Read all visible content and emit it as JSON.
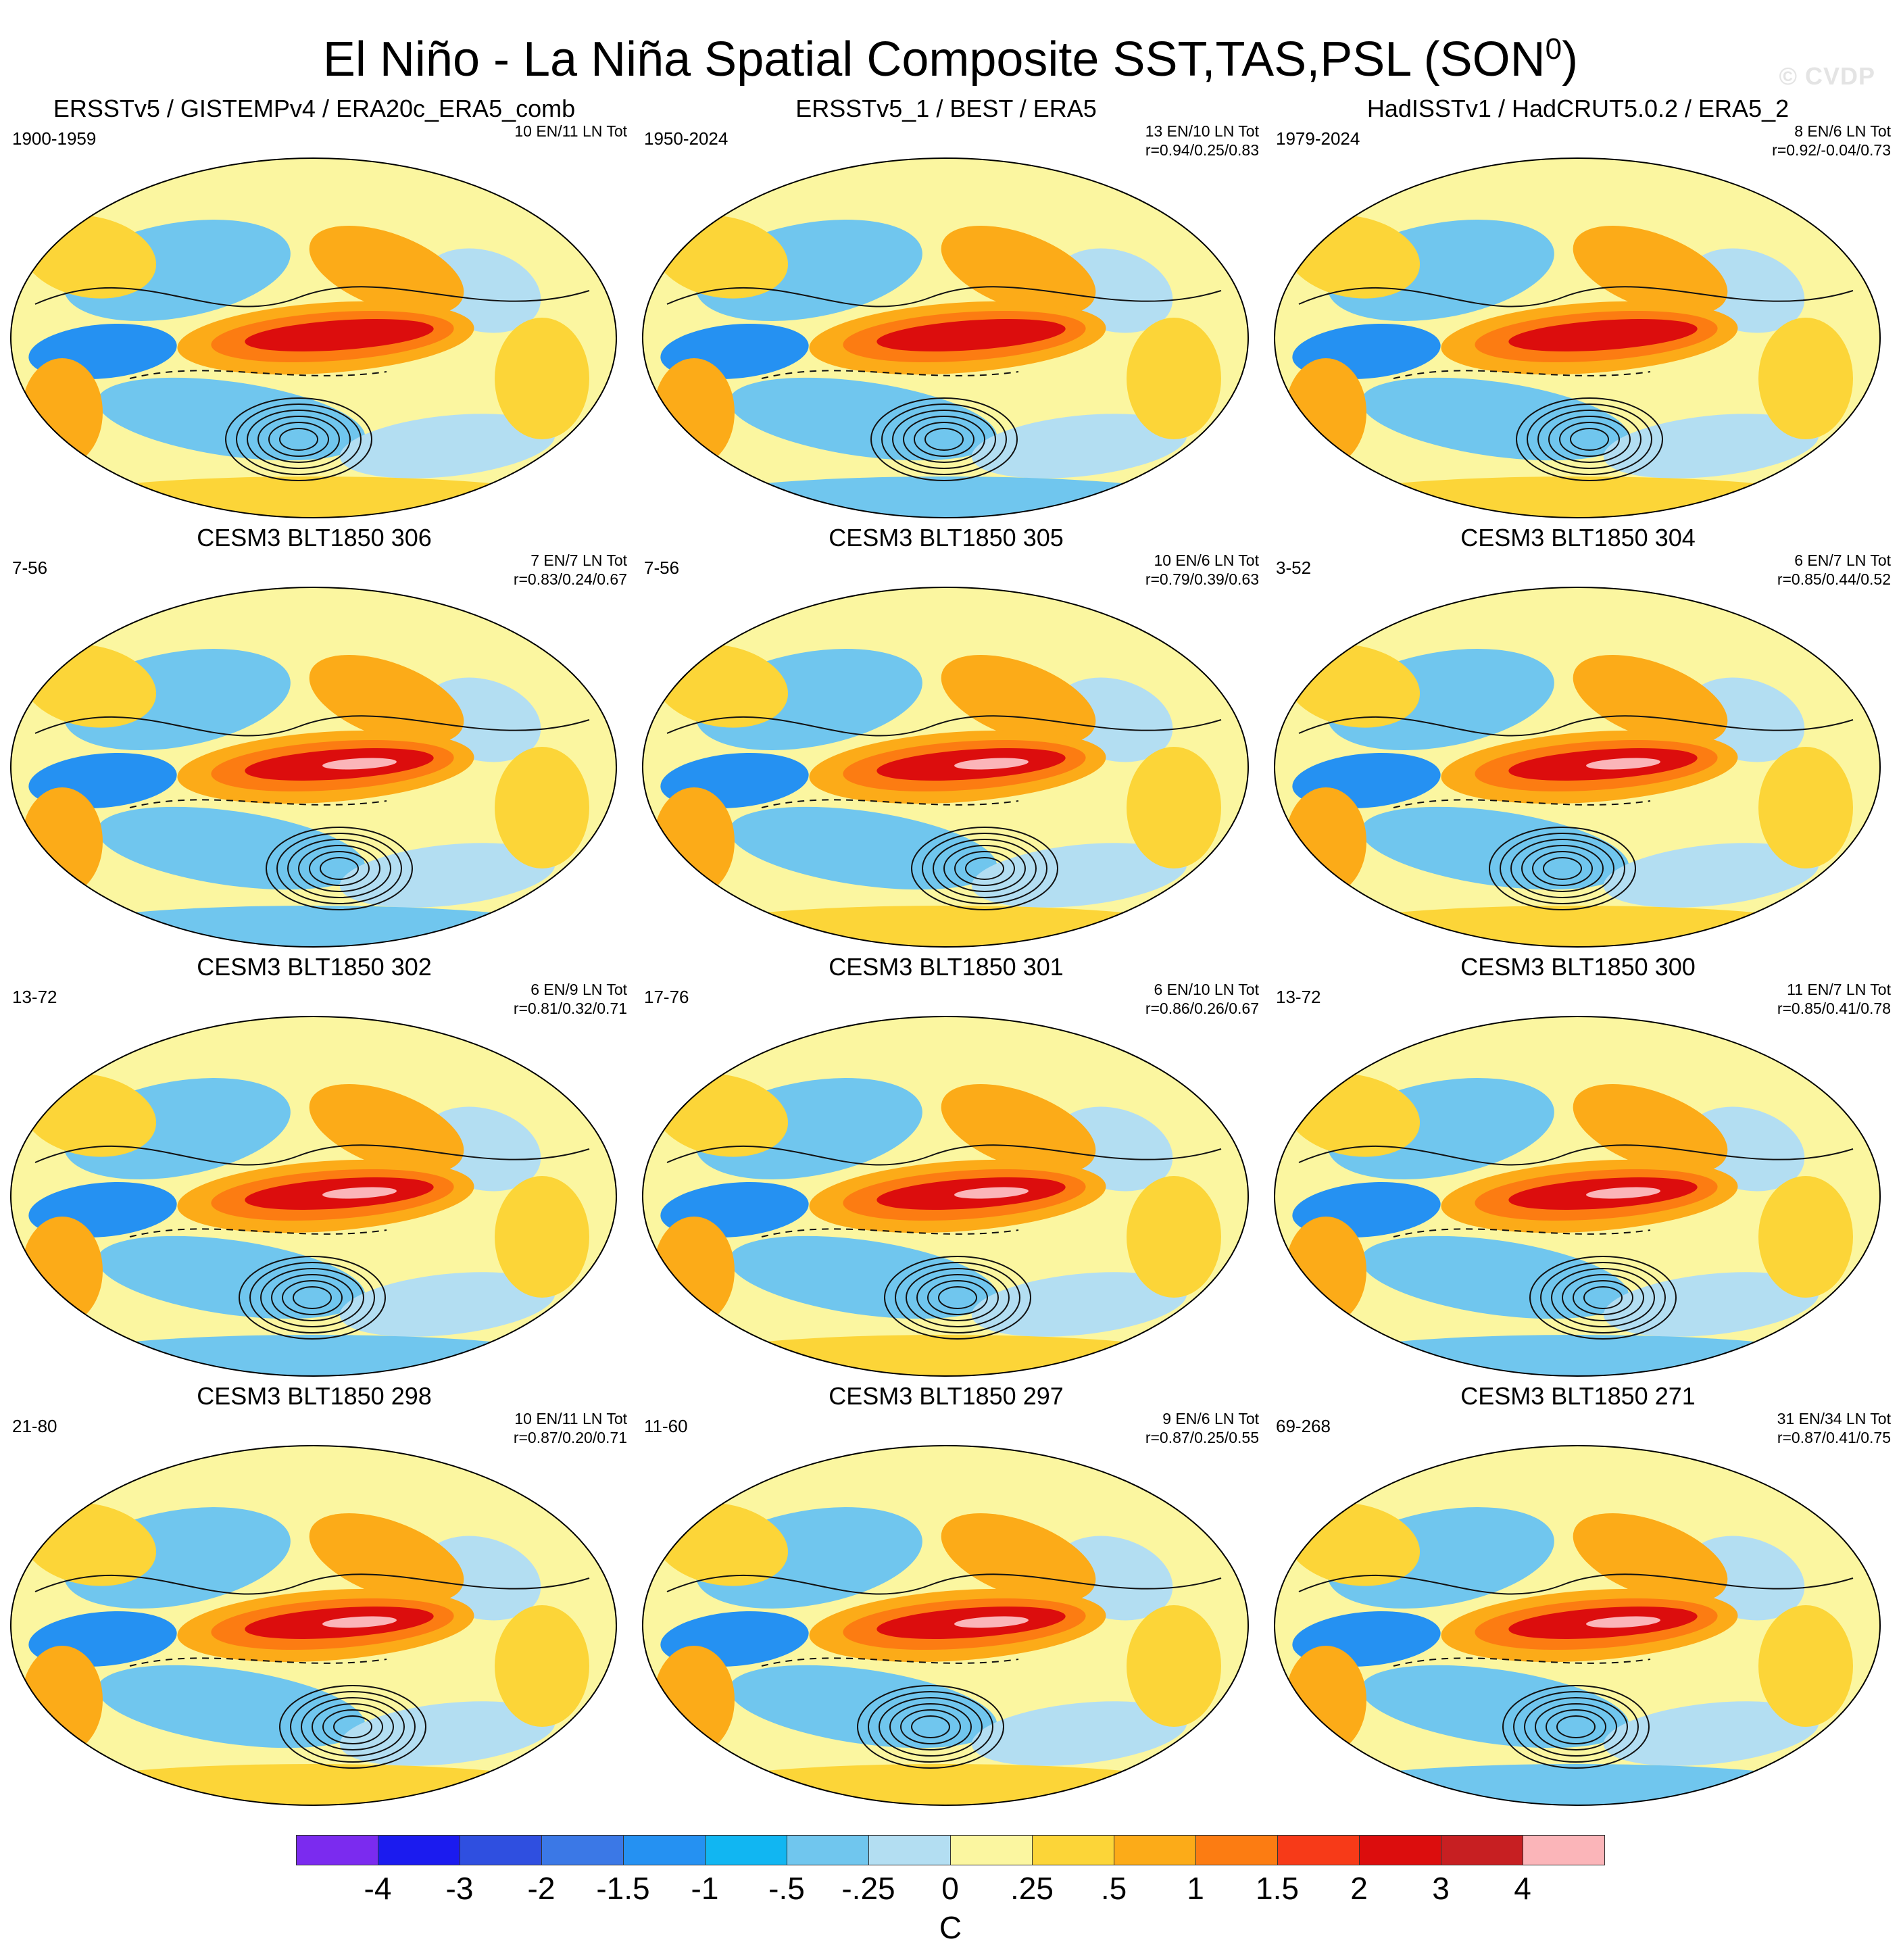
{
  "figure": {
    "title": "El Niño - La Niña Spatial Composite SST,TAS,PSL (SON",
    "title_superscript": "0",
    "title_suffix": ")",
    "watermark": "© CVDP"
  },
  "panels": [
    {
      "title": "ERSSTv5 / GISTEMPv4 / ERA20c_ERA5_comb",
      "years": "1900-1959",
      "stats": "10 EN/11 LN Tot"
    },
    {
      "title": "ERSSTv5_1 / BEST / ERA5",
      "years": "1950-2024",
      "stats": "13 EN/10 LN Tot\nr=0.94/0.25/0.83"
    },
    {
      "title": "HadISSTv1 / HadCRUT5.0.2 / ERA5_2",
      "years": "1979-2024",
      "stats": "8 EN/6 LN Tot\nr=0.92/-0.04/0.73"
    },
    {
      "title": "CESM3 BLT1850 306",
      "years": "7-56",
      "stats": "7 EN/7 LN Tot\nr=0.83/0.24/0.67"
    },
    {
      "title": "CESM3 BLT1850 305",
      "years": "7-56",
      "stats": "10 EN/6 LN Tot\nr=0.79/0.39/0.63"
    },
    {
      "title": "CESM3 BLT1850 304",
      "years": "3-52",
      "stats": "6 EN/7 LN Tot\nr=0.85/0.44/0.52"
    },
    {
      "title": "CESM3 BLT1850 302",
      "years": "13-72",
      "stats": "6 EN/9 LN Tot\nr=0.81/0.32/0.71"
    },
    {
      "title": "CESM3 BLT1850 301",
      "years": "17-76",
      "stats": "6 EN/10 LN Tot\nr=0.86/0.26/0.67"
    },
    {
      "title": "CESM3 BLT1850 300",
      "years": "13-72",
      "stats": "11 EN/7 LN Tot\nr=0.85/0.41/0.78"
    },
    {
      "title": "CESM3 BLT1850 298",
      "years": "21-80",
      "stats": "10 EN/11 LN Tot\nr=0.87/0.20/0.71"
    },
    {
      "title": "CESM3 BLT1850 297",
      "years": "11-60",
      "stats": "9 EN/6 LN Tot\nr=0.87/0.25/0.55"
    },
    {
      "title": "CESM3 BLT1850 271",
      "years": "69-268",
      "stats": "31 EN/34 LN Tot\nr=0.87/0.41/0.75"
    }
  ],
  "colorbar": {
    "colors": [
      "#7b2bef",
      "#1b1bef",
      "#2f4fe0",
      "#3b78e6",
      "#2591f2",
      "#11b6f2",
      "#70c6ee",
      "#b3def2",
      "#fbf6a0",
      "#fcd538",
      "#fcab18",
      "#fc7c12",
      "#f73a18",
      "#dc0d0d",
      "#c71f22",
      "#fbb5b9"
    ],
    "labels": [
      "-4",
      "-3",
      "-2",
      "-1.5",
      "-1",
      "-.5",
      "-.25",
      "0",
      ".25",
      ".5",
      "1",
      "1.5",
      "2",
      "3",
      "4"
    ],
    "unit": "C"
  },
  "map_colors": {
    "background": "#fbf6a0",
    "warm_light": "#fcd538",
    "warm": "#fcab18",
    "warm_strong": "#fc7c12",
    "hot": "#dc0d0d",
    "peak": "#fbb5b9",
    "cool_light": "#b3def2",
    "cool": "#70c6ee",
    "cold": "#2591f2",
    "contour": "#111111",
    "coastline": "#ffffff"
  }
}
